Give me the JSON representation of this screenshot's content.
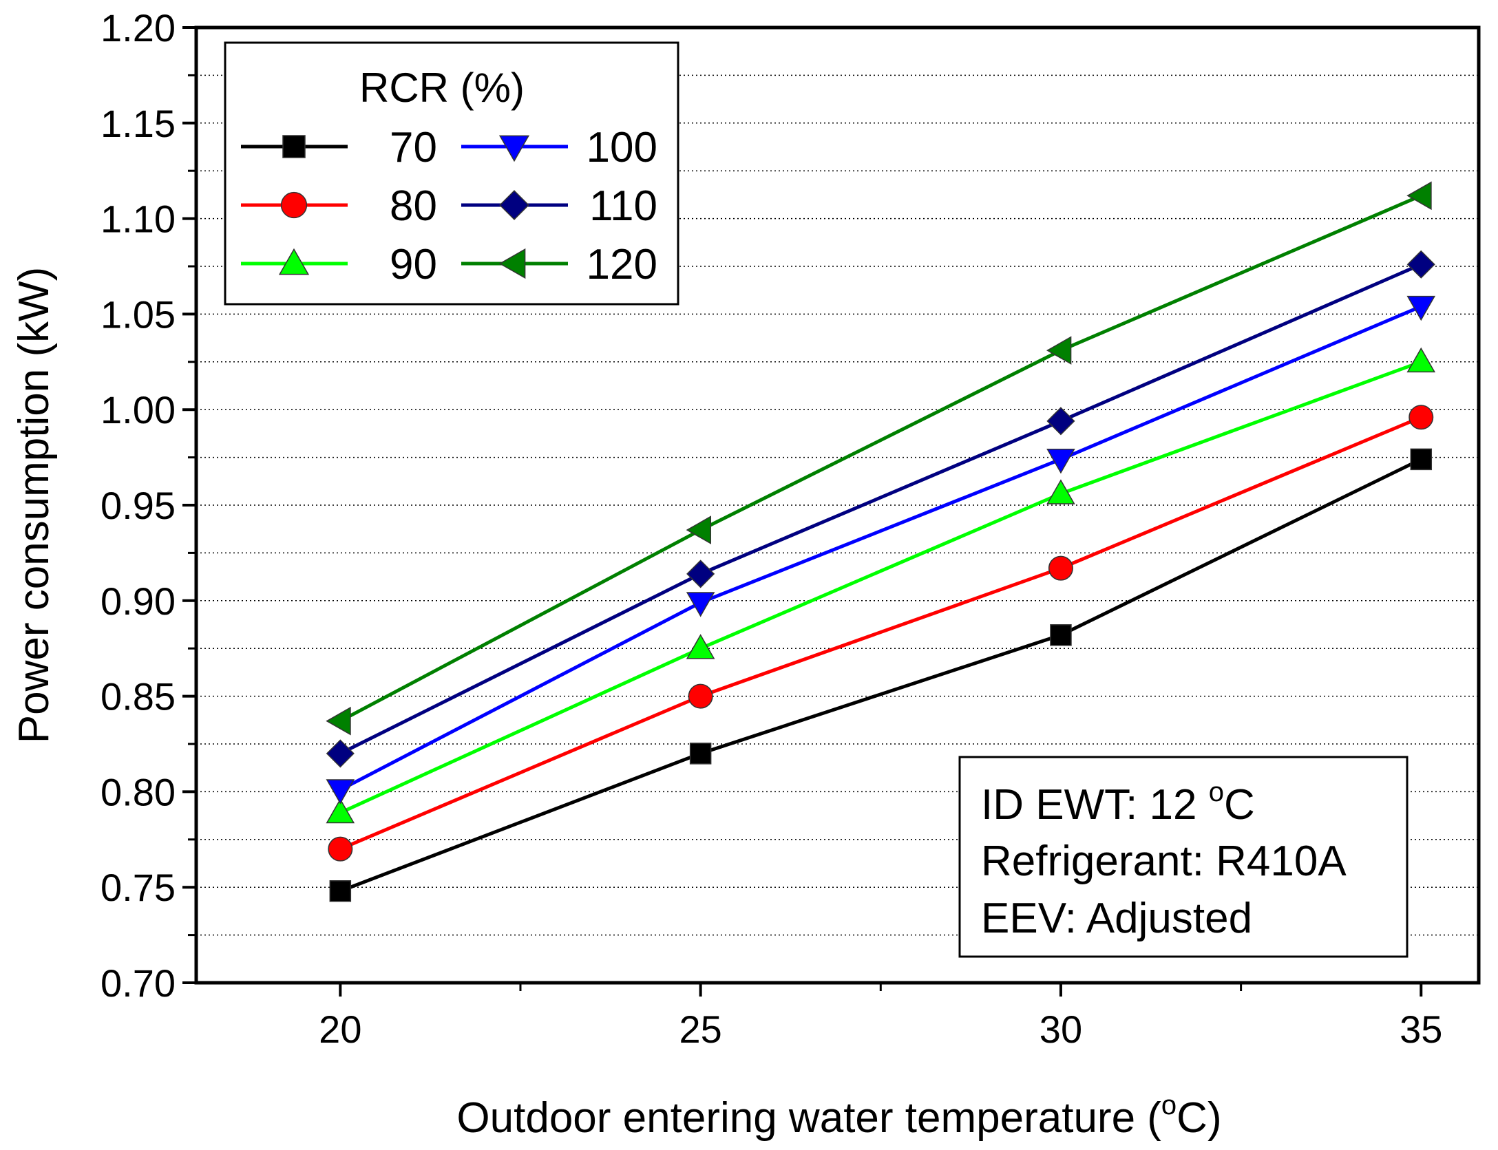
{
  "chart_data": {
    "type": "line",
    "title": "",
    "xlabel": "Outdoor entering water temperature (",
    "xlabel_sup": "o",
    "xlabel_unit": "C)",
    "ylabel": "Power consumption (kW)",
    "x": [
      20,
      25,
      30,
      35
    ],
    "xlim": [
      18,
      35.8
    ],
    "ylim": [
      0.7,
      1.2
    ],
    "x_ticks": [
      "20",
      "25",
      "30",
      "35"
    ],
    "y_ticks": [
      "0.70",
      "0.75",
      "0.80",
      "0.85",
      "0.90",
      "0.95",
      "1.00",
      "1.05",
      "1.10",
      "1.15",
      "1.20"
    ],
    "grid": "horizontal-dotted",
    "legend_title": "RCR (%)",
    "series": [
      {
        "name": "70",
        "color": "#000000",
        "marker": "square",
        "values": [
          0.748,
          0.82,
          0.882,
          0.974
        ]
      },
      {
        "name": "80",
        "color": "#ff0000",
        "marker": "circle",
        "values": [
          0.77,
          0.85,
          0.917,
          0.996
        ]
      },
      {
        "name": "90",
        "color": "#00ff00",
        "marker": "triangle-up",
        "values": [
          0.789,
          0.875,
          0.956,
          1.025
        ]
      },
      {
        "name": "100",
        "color": "#0000ff",
        "marker": "triangle-down",
        "values": [
          0.801,
          0.899,
          0.974,
          1.054
        ]
      },
      {
        "name": "110",
        "color": "#000080",
        "marker": "diamond",
        "values": [
          0.82,
          0.914,
          0.994,
          1.076
        ]
      },
      {
        "name": "120",
        "color": "#008000",
        "marker": "triangle-left",
        "values": [
          0.837,
          0.937,
          1.031,
          1.112
        ]
      }
    ],
    "annotation": {
      "line1_prefix": "ID EWT: 12 ",
      "line1_sup": "o",
      "line1_suffix": "C",
      "line2": "Refrigerant: R410A",
      "line3": "EEV: Adjusted"
    }
  }
}
